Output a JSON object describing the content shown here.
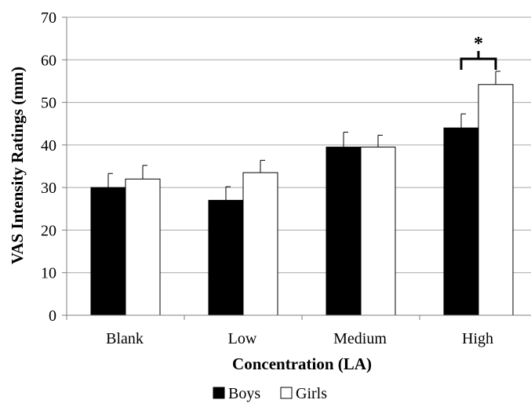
{
  "chart_data": {
    "type": "bar",
    "title": "",
    "xlabel": "Concentration (LA)",
    "ylabel": "VAS Intensity Ratings (mm)",
    "ylim": [
      0,
      70
    ],
    "yticks": [
      0,
      10,
      20,
      30,
      40,
      50,
      60,
      70
    ],
    "categories": [
      "Blank",
      "Low",
      "Medium",
      "High"
    ],
    "series": [
      {
        "name": "Boys",
        "color": "#000000",
        "values": [
          30,
          27,
          39.5,
          44
        ],
        "errors": [
          3.3,
          3.2,
          3.5,
          3.3
        ]
      },
      {
        "name": "Girls",
        "color": "#ffffff",
        "values": [
          32,
          33.5,
          39.5,
          54.2
        ],
        "errors": [
          3.2,
          2.9,
          2.8,
          3.1
        ]
      }
    ],
    "legend": "bottom",
    "grid": true,
    "significance": [
      {
        "category": "High",
        "label": "*"
      }
    ]
  }
}
